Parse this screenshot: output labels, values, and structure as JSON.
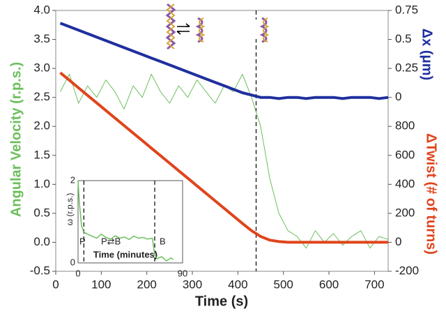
{
  "chart_data": [
    {
      "type": "line",
      "x_label": "Time (s)",
      "y_label": "Angular Velocity (r.p.s.)",
      "y2_label": "Δx (μm)",
      "y3_label": "ΔTwist (# of turns)",
      "annotations": [
        "P-DNA",
        "B-DNA",
        "B-DNA"
      ],
      "vlines": [
        440
      ],
      "xlim": [
        0,
        730
      ],
      "xticks": [
        0,
        100,
        200,
        300,
        400,
        500,
        600,
        700
      ],
      "ylim": [
        -0.5,
        4.0
      ],
      "yticks": [
        -0.5,
        {
          "value": 0,
          "label": "0.0"
        },
        0.5,
        {
          "value": 1,
          "label": "1.0"
        },
        1.5,
        {
          "value": 2,
          "label": "2.0"
        },
        2.5,
        {
          "value": 3,
          "label": "3.0"
        },
        3.5,
        {
          "value": 4,
          "label": "4.0"
        }
      ],
      "y2lim": [
        -1.5,
        0.75
      ],
      "y2ticks": [
        0,
        0.25,
        0.5,
        0.75
      ],
      "y3lim": [
        -200,
        1600
      ],
      "y3ticks": [
        -200,
        0,
        200,
        400,
        600,
        800
      ],
      "x": [
        10,
        30,
        50,
        70,
        90,
        110,
        130,
        150,
        170,
        190,
        210,
        230,
        250,
        270,
        290,
        310,
        330,
        350,
        370,
        390,
        410,
        430,
        450,
        470,
        490,
        510,
        530,
        550,
        570,
        590,
        610,
        630,
        650,
        670,
        690,
        710,
        730
      ],
      "series": [
        {
          "name": "Angular Velocity",
          "color": "#6cbf5c",
          "axis": "y",
          "width": 1,
          "values": [
            2.6,
            2.9,
            2.4,
            2.7,
            2.5,
            2.8,
            2.6,
            2.3,
            2.7,
            2.5,
            2.9,
            2.6,
            2.4,
            2.7,
            2.5,
            2.8,
            2.6,
            2.4,
            2.7,
            2.6,
            2.9,
            2.5,
            2.0,
            1.1,
            0.5,
            0.2,
            0.1,
            -0.1,
            0.2,
            0.0,
            0.15,
            -0.05,
            0.1,
            0.2,
            -0.1,
            0.1,
            0.05
          ]
        },
        {
          "name": "Δx",
          "color": "#1f2f9e",
          "axis": "y2",
          "width": 4,
          "values": [
            0.64,
            0.61,
            0.58,
            0.55,
            0.52,
            0.49,
            0.46,
            0.43,
            0.4,
            0.37,
            0.34,
            0.31,
            0.28,
            0.25,
            0.22,
            0.19,
            0.16,
            0.13,
            0.1,
            0.07,
            0.04,
            0.02,
            0.0,
            0.0,
            -0.01,
            0.0,
            0.0,
            -0.01,
            0.0,
            0.0,
            0.0,
            -0.01,
            0.0,
            0.0,
            0.0,
            -0.01,
            0.0
          ]
        },
        {
          "name": "ΔTwist",
          "color": "#e0441c",
          "axis": "y3",
          "width": 4,
          "values": [
            1170,
            1118,
            1066,
            1014,
            962,
            910,
            858,
            806,
            754,
            702,
            650,
            598,
            546,
            494,
            442,
            390,
            338,
            286,
            234,
            182,
            130,
            80,
            40,
            15,
            5,
            0,
            0,
            0,
            0,
            0,
            0,
            0,
            0,
            0,
            0,
            0,
            0
          ]
        }
      ]
    },
    {
      "type": "line",
      "x_label": "Time (minutes)",
      "y_label": "ω (r.p.s.)",
      "annotations": [
        "P",
        "P⇄B",
        "B"
      ],
      "vlines": [
        5,
        66
      ],
      "xlim": [
        0,
        90
      ],
      "xticks": [
        0,
        90
      ],
      "ylim": [
        0,
        2
      ],
      "yticks": [
        0,
        2
      ],
      "x": [
        0,
        1,
        3,
        5,
        8,
        12,
        16,
        20,
        24,
        28,
        32,
        36,
        40,
        44,
        48,
        52,
        56,
        60,
        64,
        66,
        68,
        72,
        76,
        80,
        82
      ],
      "series": [
        {
          "name": "ω",
          "color": "#6cbf5c",
          "axis": "y",
          "width": 1.5,
          "values": [
            2.0,
            1.5,
            0.9,
            0.75,
            0.7,
            0.65,
            0.6,
            0.7,
            0.62,
            0.58,
            0.66,
            0.6,
            0.63,
            0.57,
            0.65,
            0.6,
            0.62,
            0.58,
            0.6,
            0.2,
            0.1,
            0.15,
            0.05,
            0.12,
            0.08
          ]
        }
      ]
    }
  ]
}
